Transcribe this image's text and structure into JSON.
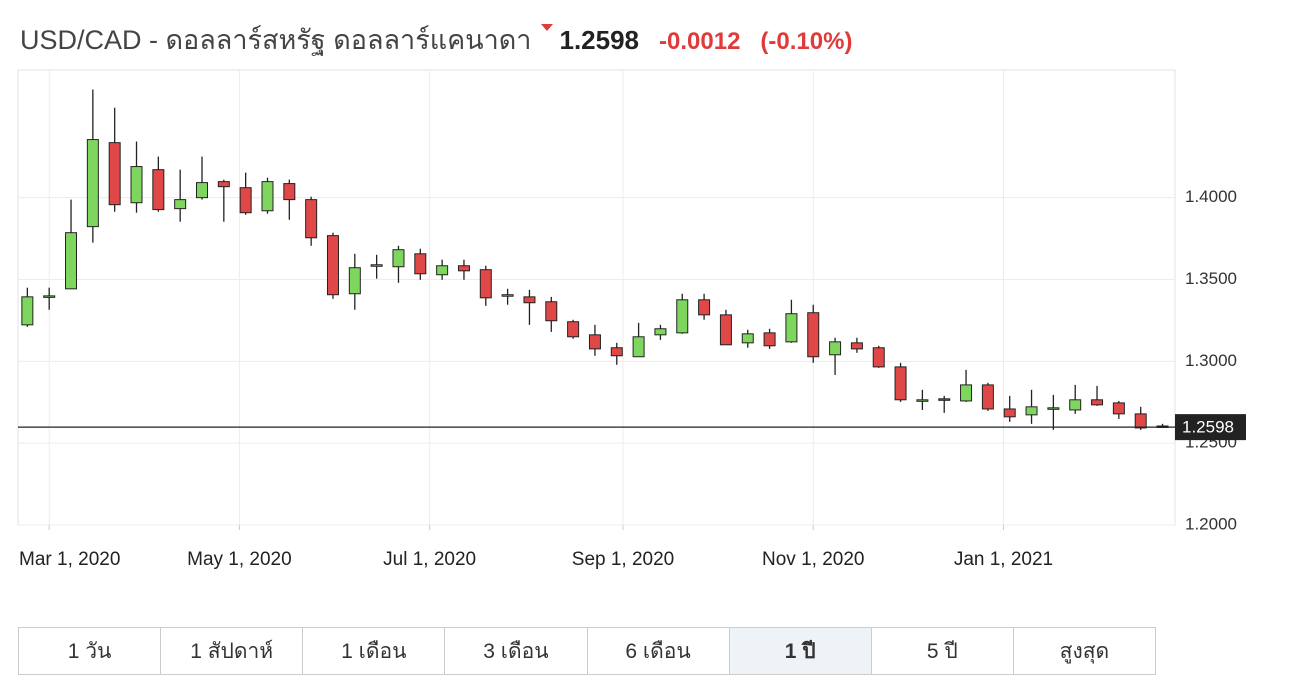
{
  "header": {
    "pair": "USD/CAD - ดอลลาร์สหรัฐ ดอลลาร์แคนาดา",
    "price": "1.2598",
    "change": "-0.0012",
    "change_pct": "(-0.10%)"
  },
  "chart_data": {
    "type": "candlestick",
    "x": [
      "2020-02-23",
      "2020-03-01",
      "2020-03-08",
      "2020-03-15",
      "2020-03-22",
      "2020-03-29",
      "2020-04-05",
      "2020-04-12",
      "2020-04-19",
      "2020-04-26",
      "2020-05-03",
      "2020-05-10",
      "2020-05-17",
      "2020-05-24",
      "2020-05-31",
      "2020-06-07",
      "2020-06-14",
      "2020-06-21",
      "2020-06-28",
      "2020-07-05",
      "2020-07-12",
      "2020-07-19",
      "2020-07-26",
      "2020-08-02",
      "2020-08-09",
      "2020-08-16",
      "2020-08-23",
      "2020-08-30",
      "2020-09-06",
      "2020-09-13",
      "2020-09-20",
      "2020-09-27",
      "2020-10-04",
      "2020-10-11",
      "2020-10-18",
      "2020-10-25",
      "2020-11-01",
      "2020-11-08",
      "2020-11-15",
      "2020-11-22",
      "2020-11-29",
      "2020-12-06",
      "2020-12-13",
      "2020-12-20",
      "2020-12-27",
      "2021-01-03",
      "2021-01-10",
      "2021-01-17",
      "2021-01-24",
      "2021-01-31",
      "2021-02-07",
      "2021-02-14",
      "2021-02-21"
    ],
    "open": [
      1.3223,
      1.3394,
      1.3443,
      1.3823,
      1.4336,
      1.3969,
      1.4171,
      1.3933,
      1.4,
      1.4098,
      1.4061,
      1.392,
      1.4086,
      1.3988,
      1.3768,
      1.3413,
      1.3584,
      1.3578,
      1.3657,
      1.3529,
      1.3584,
      1.356,
      1.3401,
      1.3394,
      1.3364,
      1.3242,
      1.3162,
      1.3083,
      1.3028,
      1.3162,
      1.3174,
      1.3376,
      1.3284,
      1.3113,
      1.3174,
      1.3119,
      1.3297,
      1.304,
      1.3113,
      1.3083,
      1.2966,
      1.2765,
      1.2771,
      1.2758,
      1.2856,
      1.2709,
      1.2673,
      1.2709,
      1.2703,
      1.2765,
      1.2746,
      1.2679,
      1.2605
    ],
    "high": [
      1.345,
      1.345,
      1.3988,
      1.4661,
      1.455,
      1.4343,
      1.4251,
      1.4171,
      1.4251,
      1.411,
      1.4153,
      1.4122,
      1.411,
      1.4006,
      1.3786,
      1.3657,
      1.3651,
      1.3706,
      1.3688,
      1.3621,
      1.3621,
      1.3584,
      1.3443,
      1.3437,
      1.3394,
      1.3254,
      1.3223,
      1.3113,
      1.3235,
      1.3223,
      1.3413,
      1.3413,
      1.3315,
      1.3193,
      1.3199,
      1.3376,
      1.3346,
      1.3144,
      1.3144,
      1.3095,
      1.2991,
      1.2826,
      1.2789,
      1.2948,
      1.2869,
      1.2789,
      1.2826,
      1.2795,
      1.2856,
      1.285,
      1.2758,
      1.2722,
      1.2618
    ],
    "low": [
      1.3211,
      1.3315,
      1.3443,
      1.3725,
      1.3914,
      1.3908,
      1.3914,
      1.3853,
      1.3988,
      1.3853,
      1.3896,
      1.3902,
      1.3865,
      1.3706,
      1.3382,
      1.3315,
      1.3505,
      1.348,
      1.3498,
      1.3498,
      1.3498,
      1.3339,
      1.3346,
      1.3223,
      1.318,
      1.3138,
      1.3034,
      1.2979,
      1.3028,
      1.3131,
      1.3168,
      1.3254,
      1.3101,
      1.3083,
      1.3076,
      1.3113,
      1.2991,
      1.2917,
      1.3052,
      1.296,
      1.2752,
      1.2703,
      1.2685,
      1.2752,
      1.2697,
      1.263,
      1.2618,
      1.2581,
      1.2679,
      1.2728,
      1.2648,
      1.2581,
      1.2593
    ],
    "close": [
      1.3394,
      1.34,
      1.3786,
      1.4355,
      1.3957,
      1.419,
      1.3927,
      1.3988,
      1.4092,
      1.4067,
      1.3908,
      1.4098,
      1.3988,
      1.3755,
      1.3407,
      1.3572,
      1.359,
      1.3682,
      1.3535,
      1.3584,
      1.3553,
      1.3388,
      1.3407,
      1.3358,
      1.3248,
      1.315,
      1.3076,
      1.3034,
      1.315,
      1.3199,
      1.3376,
      1.3284,
      1.3101,
      1.3168,
      1.3095,
      1.3291,
      1.3028,
      1.3119,
      1.3076,
      1.2966,
      1.2765,
      1.2765,
      1.2765,
      1.2856,
      1.2709,
      1.2661,
      1.2722,
      1.2716,
      1.2765,
      1.2734,
      1.2679,
      1.2593,
      1.2598
    ],
    "up_color": "#7fd65e",
    "down_color": "#e04848",
    "last_value": {
      "value": 1.2598,
      "label": "1.2598"
    },
    "xlim": [
      "2020-02-20",
      "2021-02-25"
    ],
    "xticks": [
      {
        "value": "2020-03-01",
        "label": "Mar 1, 2020"
      },
      {
        "value": "2020-05-01",
        "label": "May 1, 2020"
      },
      {
        "value": "2020-07-01",
        "label": "Jul 1, 2020"
      },
      {
        "value": "2020-09-01",
        "label": "Sep 1, 2020"
      },
      {
        "value": "2020-11-01",
        "label": "Nov 1, 2020"
      },
      {
        "value": "2021-01-01",
        "label": "Jan 1, 2021"
      }
    ],
    "ylim": [
      1.2,
      1.478
    ],
    "yticks": [
      {
        "value": 1.2,
        "label": "1.2000"
      },
      {
        "value": 1.25,
        "label": "1.2500"
      },
      {
        "value": 1.3,
        "label": "1.3000"
      },
      {
        "value": 1.35,
        "label": "1.3500"
      },
      {
        "value": 1.4,
        "label": "1.4000"
      }
    ],
    "grid": true
  },
  "tabs": {
    "items": [
      "1 วัน",
      "1 สัปดาห์",
      "1 เดือน",
      "3 เดือน",
      "6 เดือน",
      "1 ปี",
      "5 ปี",
      "สูงสุด"
    ],
    "active": 5
  }
}
